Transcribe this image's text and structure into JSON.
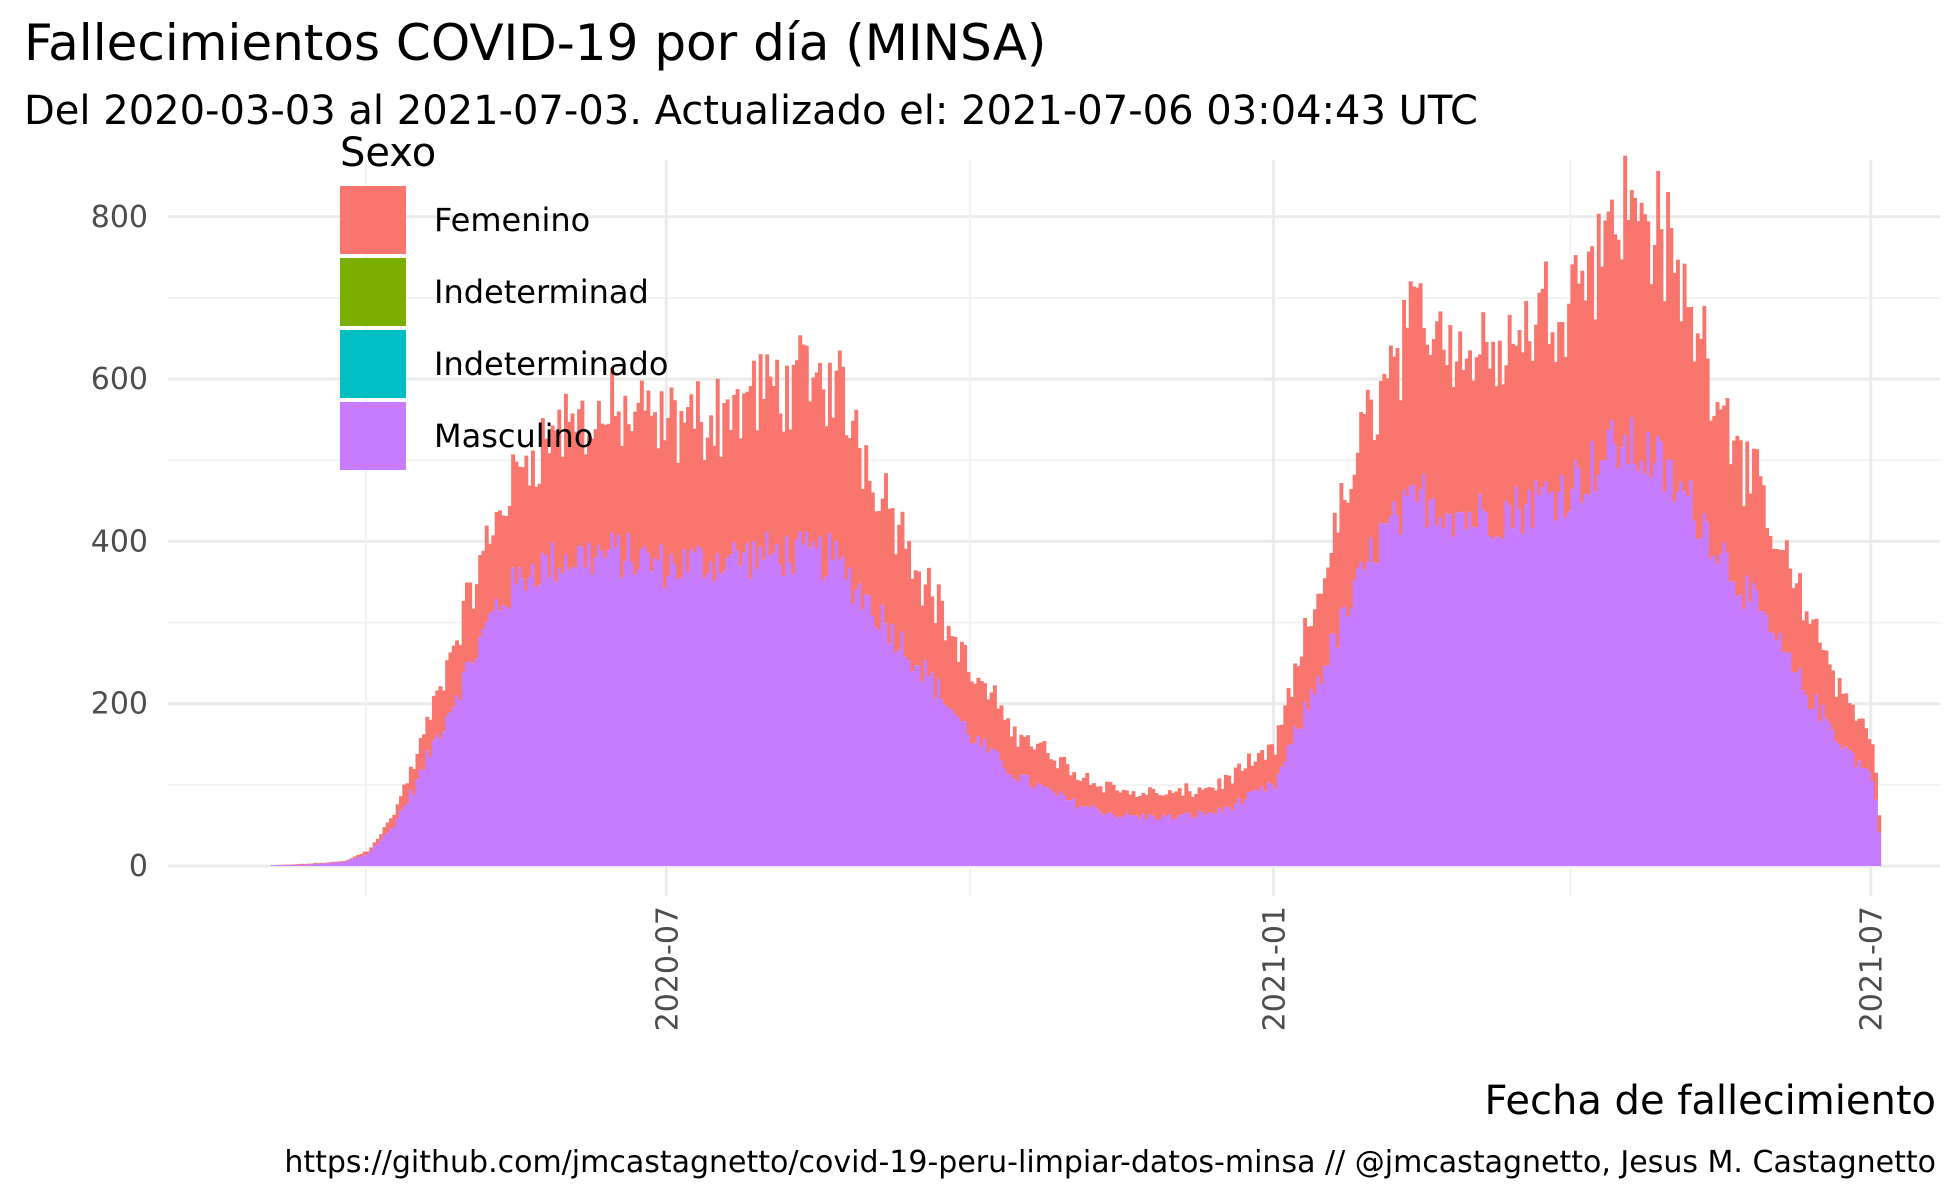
{
  "title": "Fallecimientos COVID-19 por día (MINSA)",
  "subtitle": "Del 2020-03-03 al 2021-07-03. Actualizado el: 2021-07-06 03:04:43 UTC",
  "caption": "https://github.com/jmcastagnetto/covid-19-peru-limpiar-datos-minsa // @jmcastagnetto, Jesus M. Castagnetto",
  "colors": {
    "Femenino": "#F8766D",
    "Indeterminad": "#7CAE00",
    "Indeterminado": "#00BFC4",
    "Masculino": "#C77CFF",
    "grid_major": "#EBEBEB",
    "grid_minor": "#F3F3F3"
  },
  "chart_data": {
    "type": "bar",
    "stacked": true,
    "title": "Fallecimientos COVID-19 por día (MINSA)",
    "subtitle": "Del 2020-03-03 al 2021-07-03. Actualizado el: 2021-07-06 03:04:43 UTC",
    "xlabel": "Fecha de fallecimiento",
    "ylabel": "",
    "x_range": [
      "2020-03-03",
      "2021-07-03"
    ],
    "ylim": [
      0,
      870
    ],
    "y_ticks": [
      0,
      200,
      400,
      600,
      800
    ],
    "x_ticks": [
      "2020-07",
      "2021-01",
      "2021-07"
    ],
    "grid": true,
    "legend": {
      "title": "Sexo",
      "position": "top-left",
      "entries": [
        "Femenino",
        "Indeterminad",
        "Indeterminado",
        "Masculino"
      ]
    },
    "series_order_bottom_to_top": [
      "Masculino",
      "Indeterminado",
      "Indeterminad",
      "Femenino"
    ],
    "series_daily_estimated_anchors": [
      {
        "date": "2020-03-03",
        "Masculino": 1,
        "Femenino": 0
      },
      {
        "date": "2020-03-15",
        "Masculino": 2,
        "Femenino": 1
      },
      {
        "date": "2020-03-25",
        "Masculino": 5,
        "Femenino": 1
      },
      {
        "date": "2020-04-01",
        "Masculino": 15,
        "Femenino": 4
      },
      {
        "date": "2020-04-08",
        "Masculino": 45,
        "Femenino": 12
      },
      {
        "date": "2020-04-15",
        "Masculino": 95,
        "Femenino": 30
      },
      {
        "date": "2020-04-22",
        "Masculino": 160,
        "Femenino": 50
      },
      {
        "date": "2020-05-01",
        "Masculino": 240,
        "Femenino": 80
      },
      {
        "date": "2020-05-10",
        "Masculino": 320,
        "Femenino": 110
      },
      {
        "date": "2020-05-20",
        "Masculino": 365,
        "Femenino": 145
      },
      {
        "date": "2020-06-01",
        "Masculino": 380,
        "Femenino": 165
      },
      {
        "date": "2020-06-15",
        "Masculino": 385,
        "Femenino": 170
      },
      {
        "date": "2020-07-01",
        "Masculino": 370,
        "Femenino": 170
      },
      {
        "date": "2020-07-20",
        "Masculino": 380,
        "Femenino": 185
      },
      {
        "date": "2020-08-05",
        "Masculino": 385,
        "Femenino": 210
      },
      {
        "date": "2020-08-20",
        "Masculino": 380,
        "Femenino": 220
      },
      {
        "date": "2020-09-01",
        "Masculino": 320,
        "Femenino": 170
      },
      {
        "date": "2020-09-15",
        "Masculino": 250,
        "Femenino": 120
      },
      {
        "date": "2020-10-01",
        "Masculino": 160,
        "Femenino": 75
      },
      {
        "date": "2020-10-15",
        "Masculino": 110,
        "Femenino": 55
      },
      {
        "date": "2020-11-01",
        "Masculino": 78,
        "Femenino": 38
      },
      {
        "date": "2020-11-15",
        "Masculino": 62,
        "Femenino": 30
      },
      {
        "date": "2020-12-01",
        "Masculino": 60,
        "Femenino": 28
      },
      {
        "date": "2020-12-15",
        "Masculino": 67,
        "Femenino": 33
      },
      {
        "date": "2021-01-01",
        "Masculino": 100,
        "Femenino": 45
      },
      {
        "date": "2021-01-15",
        "Masculino": 240,
        "Femenino": 110
      },
      {
        "date": "2021-02-01",
        "Masculino": 400,
        "Femenino": 190
      },
      {
        "date": "2021-02-15",
        "Masculino": 455,
        "Femenino": 230
      },
      {
        "date": "2021-03-01",
        "Masculino": 430,
        "Femenino": 200
      },
      {
        "date": "2021-03-15",
        "Masculino": 440,
        "Femenino": 210
      },
      {
        "date": "2021-04-01",
        "Masculino": 470,
        "Femenino": 250
      },
      {
        "date": "2021-04-15",
        "Masculino": 520,
        "Femenino": 290
      },
      {
        "date": "2021-04-25",
        "Masculino": 505,
        "Femenino": 300
      },
      {
        "date": "2021-05-10",
        "Masculino": 430,
        "Femenino": 220
      },
      {
        "date": "2021-05-25",
        "Masculino": 330,
        "Femenino": 150
      },
      {
        "date": "2021-06-10",
        "Masculino": 220,
        "Femenino": 100
      },
      {
        "date": "2021-06-25",
        "Masculino": 135,
        "Femenino": 55
      },
      {
        "date": "2021-07-01",
        "Masculino": 110,
        "Femenino": 48
      },
      {
        "date": "2021-07-03",
        "Masculino": 45,
        "Femenino": 20
      }
    ]
  }
}
